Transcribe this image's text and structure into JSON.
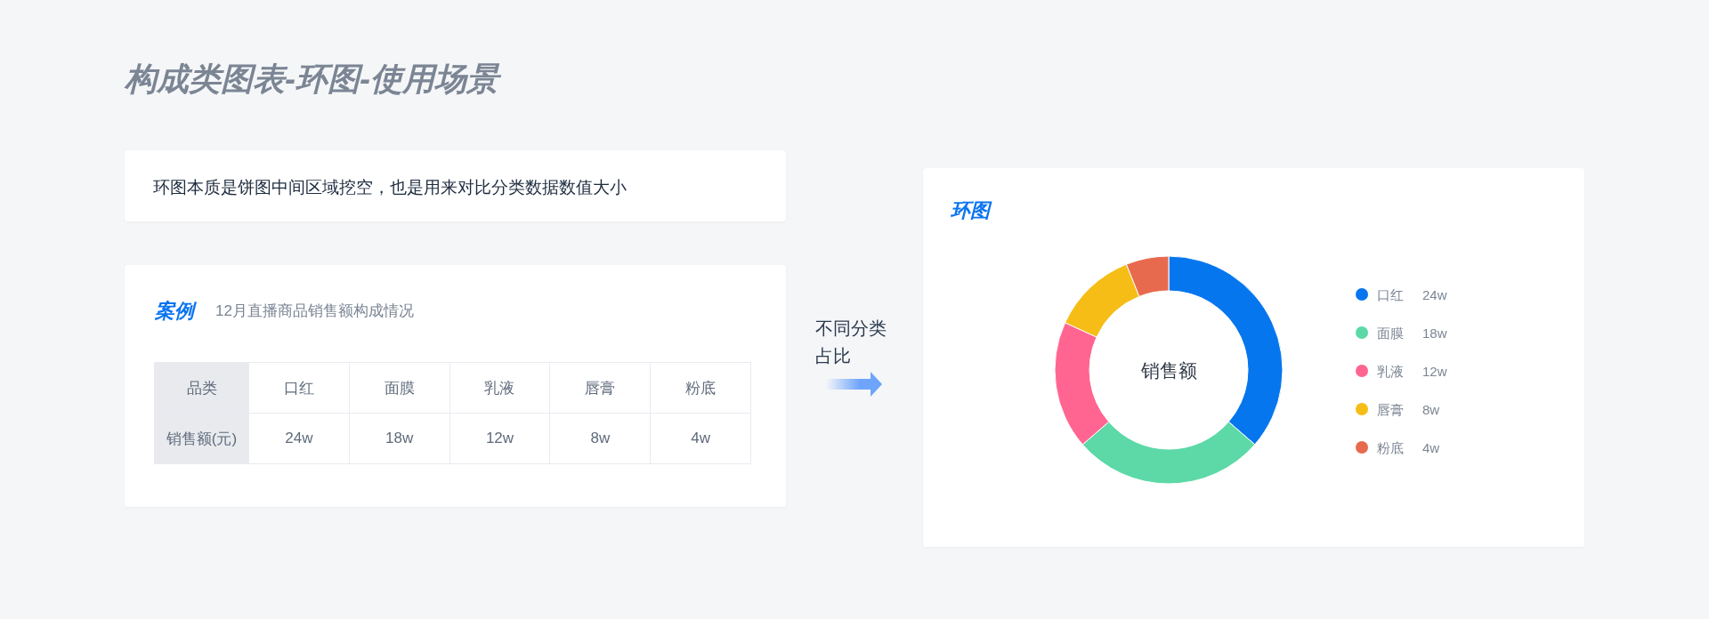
{
  "chart_data": {
    "type": "donut",
    "title": "构成类图表-环图-使用场景",
    "subtitle": "环图",
    "categories": [
      "口红",
      "面膜",
      "乳液",
      "唇膏",
      "粉底"
    ],
    "values": [
      24,
      18,
      12,
      8,
      4
    ],
    "colors": [
      "#0676ef",
      "#5cd9a6",
      "#ff6590",
      "#f6bd16",
      "#e86a4e"
    ],
    "value_labels": [
      "24w",
      "18w",
      "12w",
      "8w",
      "4w"
    ],
    "legend": "right",
    "annotations": [
      "环图本质是饼图中间区域挖空，也是用来对比分类数据数值大小",
      "案例",
      "12月直播商品销售额构成情况",
      "品类",
      "销售额(元)",
      "不同分类占比",
      "销售额"
    ]
  }
}
